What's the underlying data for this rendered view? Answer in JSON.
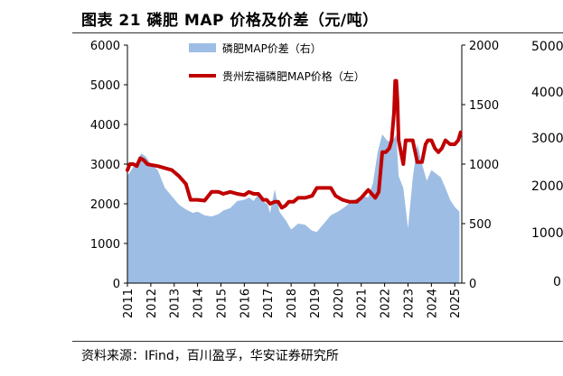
{
  "title": "图表 21 磷肥 MAP 价格及价差（元/吨）",
  "source": "资料来源：IFind，百川盈孚，华安证券研究所",
  "colors": {
    "area": "#9dbde4",
    "line": "#c00000"
  },
  "chart_data": {
    "type": "area+line",
    "title": "图表 21 磷肥 MAP 价格及价差（元/吨）",
    "x_ticks": [
      "2011",
      "2012",
      "2013",
      "2014",
      "2015",
      "2016",
      "2017",
      "2018",
      "2019",
      "2020",
      "2021",
      "2022",
      "2023",
      "2024",
      "2025"
    ],
    "left_axis": {
      "ylim": [
        0,
        6000
      ],
      "ticks": [
        "0",
        "1000",
        "2000",
        "3000",
        "4000",
        "5000",
        "6000"
      ]
    },
    "right_axis": {
      "ylim": [
        0,
        2000
      ],
      "ticks": [
        "0",
        "500",
        "1000",
        "1500",
        "2000"
      ]
    },
    "series": [
      {
        "name": "磷肥MAP价差（右）",
        "axis": "right",
        "type": "area",
        "x": [
          2011.0,
          2011.2,
          2011.4,
          2011.6,
          2011.8,
          2012.0,
          2012.3,
          2012.6,
          2012.9,
          2013.2,
          2013.5,
          2013.8,
          2014.0,
          2014.3,
          2014.6,
          2014.9,
          2015.1,
          2015.4,
          2015.7,
          2016.0,
          2016.2,
          2016.4,
          2016.6,
          2016.8,
          2017.0,
          2017.1,
          2017.3,
          2017.5,
          2017.8,
          2018.0,
          2018.3,
          2018.6,
          2018.9,
          2019.1,
          2019.4,
          2019.7,
          2020.0,
          2020.3,
          2020.6,
          2020.9,
          2021.1,
          2021.3,
          2021.5,
          2021.7,
          2021.9,
          2022.1,
          2022.3,
          2022.5,
          2022.6,
          2022.8,
          2023.0,
          2023.2,
          2023.4,
          2023.6,
          2023.8,
          2024.0,
          2024.2,
          2024.4,
          2024.6,
          2024.8,
          2025.0,
          2025.2
        ],
        "values": [
          900,
          960,
          1020,
          1090,
          1060,
          1000,
          950,
          800,
          730,
          660,
          620,
          590,
          600,
          570,
          560,
          580,
          610,
          630,
          690,
          700,
          720,
          690,
          750,
          690,
          660,
          590,
          790,
          600,
          520,
          450,
          500,
          490,
          440,
          430,
          500,
          570,
          600,
          640,
          690,
          720,
          730,
          720,
          840,
          1100,
          1250,
          1200,
          1180,
          1250,
          900,
          800,
          460,
          880,
          1170,
          1000,
          860,
          950,
          920,
          890,
          800,
          700,
          640,
          600
        ]
      },
      {
        "name": "贵州宏福磷肥MAP价格（左）",
        "axis": "left",
        "type": "line",
        "x": [
          2011.0,
          2011.1,
          2011.25,
          2011.4,
          2011.55,
          2011.7,
          2011.85,
          2012.0,
          2012.3,
          2012.6,
          2012.9,
          2013.2,
          2013.5,
          2013.7,
          2013.85,
          2014.0,
          2014.3,
          2014.6,
          2014.9,
          2015.1,
          2015.4,
          2015.7,
          2016.0,
          2016.2,
          2016.4,
          2016.6,
          2016.8,
          2016.95,
          2017.1,
          2017.3,
          2017.45,
          2017.6,
          2017.75,
          2017.9,
          2018.1,
          2018.3,
          2018.6,
          2018.9,
          2019.1,
          2019.3,
          2019.5,
          2019.7,
          2019.9,
          2020.2,
          2020.5,
          2020.8,
          2021.0,
          2021.15,
          2021.3,
          2021.45,
          2021.6,
          2021.75,
          2021.9,
          2022.05,
          2022.2,
          2022.3,
          2022.4,
          2022.45,
          2022.5,
          2022.55,
          2022.6,
          2022.7,
          2022.8,
          2022.9,
          2023.0,
          2023.2,
          2023.4,
          2023.6,
          2023.75,
          2023.85,
          2024.0,
          2024.15,
          2024.3,
          2024.45,
          2024.6,
          2024.8,
          2025.0,
          2025.15,
          2025.25
        ],
        "values": [
          2850,
          3000,
          3000,
          2950,
          3150,
          3100,
          3000,
          2980,
          2950,
          2900,
          2850,
          2700,
          2500,
          2100,
          2100,
          2100,
          2080,
          2300,
          2300,
          2250,
          2300,
          2250,
          2220,
          2300,
          2250,
          2250,
          2100,
          2100,
          2000,
          2050,
          2050,
          1900,
          1950,
          2050,
          2050,
          2150,
          2150,
          2200,
          2400,
          2400,
          2400,
          2400,
          2200,
          2100,
          2050,
          2050,
          2150,
          2250,
          2350,
          2250,
          2150,
          2300,
          3300,
          3300,
          3400,
          3600,
          4300,
          5100,
          5100,
          4600,
          3600,
          3300,
          3000,
          3600,
          3600,
          3600,
          3050,
          3050,
          3500,
          3600,
          3600,
          3400,
          3300,
          3400,
          3600,
          3500,
          3500,
          3600,
          3800
        ]
      }
    ]
  },
  "legend": [
    {
      "label": "磷肥MAP价差（右）"
    },
    {
      "label": "贵州宏福磷肥MAP价格（左）"
    }
  ],
  "neighbor_chart_ticks": [
    "5000",
    "4000",
    "3000",
    "2000",
    "1000",
    "0"
  ]
}
